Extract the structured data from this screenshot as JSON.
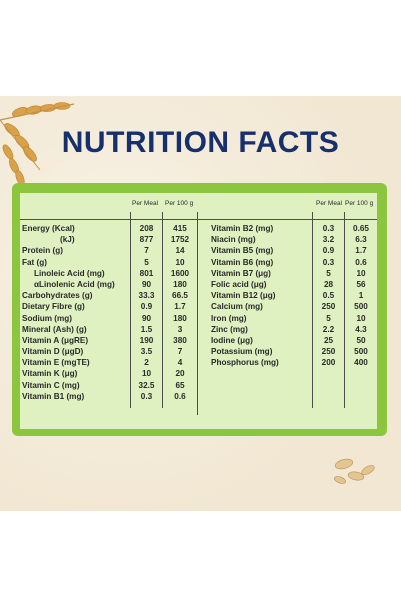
{
  "title": "NUTRITION FACTS",
  "headers": {
    "per_meal": "Per Meal",
    "per_100g": "Per 100 g"
  },
  "left_rows": [
    {
      "label": "Energy (Kcal)",
      "meal": "208",
      "g100": "415",
      "sub": false
    },
    {
      "label": "(kJ)",
      "meal": "877",
      "g100": "1752",
      "sub": "kj"
    },
    {
      "label": "Protein (g)",
      "meal": "7",
      "g100": "14",
      "sub": false
    },
    {
      "label": "Fat (g)",
      "meal": "5",
      "g100": "10",
      "sub": false
    },
    {
      "label": "Linoleic Acid (mg)",
      "meal": "801",
      "g100": "1600",
      "sub": true
    },
    {
      "label": "αLinolenic Acid (mg)",
      "meal": "90",
      "g100": "180",
      "sub": true
    },
    {
      "label": "Carbohydrates (g)",
      "meal": "33.3",
      "g100": "66.5",
      "sub": false
    },
    {
      "label": "Dietary Fibre (g)",
      "meal": "0.9",
      "g100": "1.7",
      "sub": false
    },
    {
      "label": "Sodium (mg)",
      "meal": "90",
      "g100": "180",
      "sub": false
    },
    {
      "label": "Mineral (Ash) (g)",
      "meal": "1.5",
      "g100": "3",
      "sub": false
    },
    {
      "label": "Vitamin A (μgRE)",
      "meal": "190",
      "g100": "380",
      "sub": false
    },
    {
      "label": "Vitamin D (μgD)",
      "meal": "3.5",
      "g100": "7",
      "sub": false
    },
    {
      "label": "Vitamin E (mgTE)",
      "meal": "2",
      "g100": "4",
      "sub": false
    },
    {
      "label": "Vitamin K (μg)",
      "meal": "10",
      "g100": "20",
      "sub": false
    },
    {
      "label": "Vitamin C (mg)",
      "meal": "32.5",
      "g100": "65",
      "sub": false
    },
    {
      "label": "Vitamin B1 (mg)",
      "meal": "0.3",
      "g100": "0.6",
      "sub": false
    }
  ],
  "right_rows": [
    {
      "label": "Vitamin B2 (mg)",
      "meal": "0.3",
      "g100": "0.65"
    },
    {
      "label": "Niacin (mg)",
      "meal": "3.2",
      "g100": "6.3"
    },
    {
      "label": "Vitamin B5 (mg)",
      "meal": "0.9",
      "g100": "1.7"
    },
    {
      "label": "Vitamin B6 (mg)",
      "meal": "0.3",
      "g100": "0.6"
    },
    {
      "label": "Vitamin B7 (μg)",
      "meal": "5",
      "g100": "10"
    },
    {
      "label": "Folic acid (μg)",
      "meal": "28",
      "g100": "56"
    },
    {
      "label": "Vitamin B12 (μg)",
      "meal": "0.5",
      "g100": "1"
    },
    {
      "label": "Calcium (mg)",
      "meal": "250",
      "g100": "500"
    },
    {
      "label": "Iron (mg)",
      "meal": "5",
      "g100": "10"
    },
    {
      "label": "Zinc (mg)",
      "meal": "2.2",
      "g100": "4.3"
    },
    {
      "label": "Iodine (μg)",
      "meal": "25",
      "g100": "50"
    },
    {
      "label": "Potassium (mg)",
      "meal": "250",
      "g100": "500"
    },
    {
      "label": "Phosphorus (mg)",
      "meal": "200",
      "g100": "400"
    }
  ],
  "colors": {
    "title": "#16306e",
    "frame": "#8cc63f",
    "table_bg": "#dff0c1",
    "panel_bg": "#f4ecdb"
  },
  "icons": {
    "wheat": "wheat-icon",
    "seeds": "oat-seeds-icon"
  }
}
